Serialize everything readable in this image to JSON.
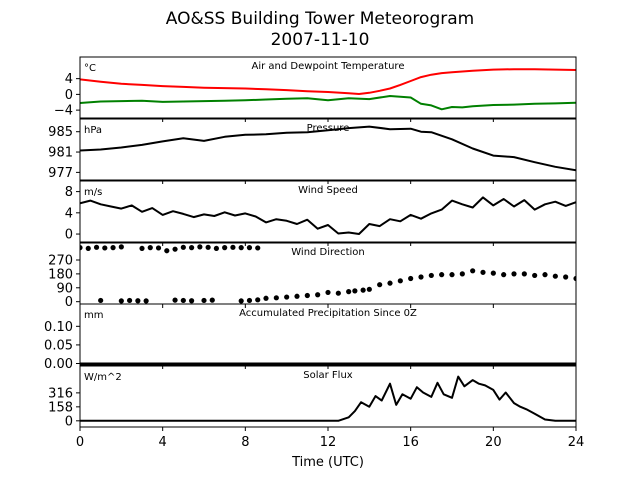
{
  "chart_data": {
    "type": "line",
    "title": "AO&SS Building Tower Meteorogram",
    "subtitle": "2007-11-10",
    "xlabel": "Time (UTC)",
    "xlim": [
      0,
      24
    ],
    "xticks": [
      0,
      4,
      8,
      12,
      16,
      20,
      24
    ],
    "panels": [
      {
        "title": "Air and Dewpoint Temperature",
        "unit": "°C",
        "ylim": [
          -6,
          9.5
        ],
        "yticks": [
          4,
          0,
          -4
        ],
        "series": [
          {
            "color": "#ff0000",
            "x": [
              0,
              1,
              2,
              3,
              4,
              5,
              6,
              7,
              8,
              9,
              10,
              11,
              12,
              13,
              13.5,
              14,
              14.5,
              15,
              15.5,
              16,
              16.5,
              17,
              17.5,
              18,
              19,
              20,
              21,
              22,
              23,
              24
            ],
            "y": [
              3.8,
              3.2,
              2.7,
              2.4,
              2.1,
              1.9,
              1.7,
              1.6,
              1.5,
              1.3,
              1.1,
              0.8,
              0.6,
              0.3,
              0.1,
              0.4,
              0.9,
              1.5,
              2.4,
              3.4,
              4.4,
              5.0,
              5.4,
              5.6,
              6.0,
              6.3,
              6.4,
              6.4,
              6.3,
              6.2
            ]
          },
          {
            "color": "#008000",
            "x": [
              0,
              1,
              2,
              3,
              4,
              5,
              6,
              7,
              8,
              9,
              10,
              11,
              12,
              13,
              14,
              15,
              16,
              16.5,
              17,
              17.5,
              18,
              18.5,
              19,
              20,
              21,
              22,
              23,
              24
            ],
            "y": [
              -2.2,
              -1.8,
              -1.7,
              -1.6,
              -1.9,
              -1.8,
              -1.7,
              -1.6,
              -1.5,
              -1.3,
              -1.1,
              -1.0,
              -1.5,
              -1.0,
              -1.2,
              -0.4,
              -0.8,
              -2.4,
              -2.8,
              -3.8,
              -3.2,
              -3.3,
              -3.0,
              -2.7,
              -2.6,
              -2.4,
              -2.3,
              -2.1
            ]
          }
        ]
      },
      {
        "title": "Pressure",
        "unit": "hPa",
        "ylim": [
          975.5,
          987.5
        ],
        "yticks": [
          985,
          981,
          977
        ],
        "series": [
          {
            "color": "#000000",
            "x": [
              0,
              1,
              2,
              3,
              4,
              5,
              6,
              7,
              8,
              9,
              10,
              11,
              12,
              13,
              14,
              15,
              16,
              16.5,
              17,
              18,
              19,
              20,
              21,
              22,
              23,
              24
            ],
            "y": [
              981.3,
              981.5,
              981.9,
              982.4,
              983.1,
              983.7,
              983.2,
              984.0,
              984.4,
              984.5,
              984.8,
              984.9,
              985.3,
              985.7,
              986.0,
              985.5,
              985.6,
              985.0,
              984.9,
              983.5,
              981.7,
              980.3,
              980.0,
              979.0,
              978.1,
              977.4
            ]
          }
        ]
      },
      {
        "title": "Wind Speed",
        "unit": "m/s",
        "ylim": [
          -1.5,
          10
        ],
        "yticks": [
          8,
          4,
          0
        ],
        "series": [
          {
            "color": "#000000",
            "x": [
              0,
              0.5,
              1,
              1.5,
              2,
              2.5,
              3,
              3.5,
              4,
              4.5,
              5,
              5.5,
              6,
              6.5,
              7,
              7.5,
              8,
              8.5,
              9,
              9.5,
              10,
              10.5,
              11,
              11.5,
              12,
              12.5,
              13,
              13.5,
              14,
              14.5,
              15,
              15.5,
              16,
              16.5,
              17,
              17.5,
              18,
              18.5,
              19,
              19.5,
              20,
              20.5,
              21,
              21.5,
              22,
              22.5,
              23,
              23.5,
              24
            ],
            "y": [
              5.8,
              6.3,
              5.6,
              5.2,
              4.8,
              5.4,
              4.2,
              4.9,
              3.6,
              4.3,
              3.8,
              3.2,
              3.7,
              3.4,
              4.1,
              3.5,
              3.9,
              3.3,
              2.2,
              2.8,
              2.5,
              1.9,
              2.7,
              1.0,
              1.7,
              0.1,
              0.3,
              0.0,
              1.9,
              1.5,
              2.8,
              2.4,
              3.6,
              2.9,
              3.9,
              4.6,
              6.3,
              5.6,
              5.0,
              6.9,
              5.4,
              6.6,
              5.2,
              6.4,
              4.6,
              5.6,
              6.1,
              5.3,
              6.0
            ]
          }
        ]
      },
      {
        "title": "Wind Direction",
        "unit": "",
        "ylim": [
          -15,
          380
        ],
        "yticks": [
          270,
          180,
          90,
          0
        ],
        "series": [
          {
            "color": "#000000",
            "style": "markers",
            "x": [
              0,
              0.4,
              0.8,
              1.2,
              1.6,
              2.0,
              3.0,
              3.4,
              3.8,
              4.2,
              4.6,
              5.0,
              5.4,
              5.8,
              6.2,
              6.6,
              7.0,
              7.4,
              7.8,
              8.2,
              8.6,
              1.0,
              2.0,
              2.4,
              2.8,
              3.2,
              4.6,
              5.0,
              5.4,
              6.0,
              6.4,
              7.8,
              8.2,
              8.6,
              9.0,
              9.5,
              10.0,
              10.5,
              11.0,
              11.5,
              12.0,
              12.5,
              13.0,
              13.3,
              13.7,
              14.0,
              14.5,
              15.0,
              15.5,
              16.0,
              16.5,
              17.0,
              17.5,
              18.0,
              18.5,
              19.0,
              19.5,
              20.0,
              20.5,
              21.0,
              21.5,
              22.0,
              22.5,
              23.0,
              23.5,
              24.0
            ],
            "y": [
              350,
              345,
              352,
              348,
              350,
              355,
              345,
              350,
              348,
              330,
              340,
              352,
              350,
              355,
              352,
              345,
              350,
              352,
              350,
              350,
              348,
              8,
              5,
              8,
              6,
              5,
              10,
              8,
              6,
              8,
              10,
              5,
              8,
              12,
              22,
              25,
              30,
              35,
              40,
              45,
              60,
              55,
              65,
              70,
              75,
              80,
              110,
              120,
              135,
              150,
              160,
              170,
              175,
              175,
              180,
              200,
              190,
              185,
              175,
              180,
              180,
              170,
              175,
              165,
              160,
              150
            ]
          }
        ]
      },
      {
        "title": "Accumulated Precipitation Since 0Z",
        "unit": "mm",
        "ylim": [
          -0.004,
          0.16
        ],
        "yticks": [
          0.1,
          0.05,
          0.0
        ],
        "series": [
          {
            "color": "#000000",
            "x": [
              0,
              24
            ],
            "y": [
              0,
              0
            ]
          }
        ]
      },
      {
        "title": "Solar Flux",
        "unit": "W/m^2",
        "ylim": [
          -70,
          620
        ],
        "yticks": [
          316,
          158,
          0
        ],
        "series": [
          {
            "color": "#000000",
            "x": [
              0,
              6,
              10,
              12,
              12.5,
              13,
              13.3,
              13.6,
              14,
              14.3,
              14.6,
              15,
              15.3,
              15.6,
              16,
              16.3,
              16.6,
              17,
              17.3,
              17.6,
              18,
              18.3,
              18.6,
              19,
              19.3,
              19.6,
              20,
              20.3,
              20.6,
              21,
              21.3,
              21.6,
              22,
              22.5,
              23,
              24
            ],
            "y": [
              0,
              0,
              0,
              0,
              0,
              40,
              110,
              210,
              160,
              280,
              230,
              420,
              180,
              300,
              250,
              380,
              320,
              270,
              430,
              300,
              260,
              500,
              390,
              460,
              420,
              400,
              350,
              240,
              320,
              200,
              160,
              130,
              80,
              15,
              0,
              0
            ]
          }
        ]
      }
    ]
  }
}
